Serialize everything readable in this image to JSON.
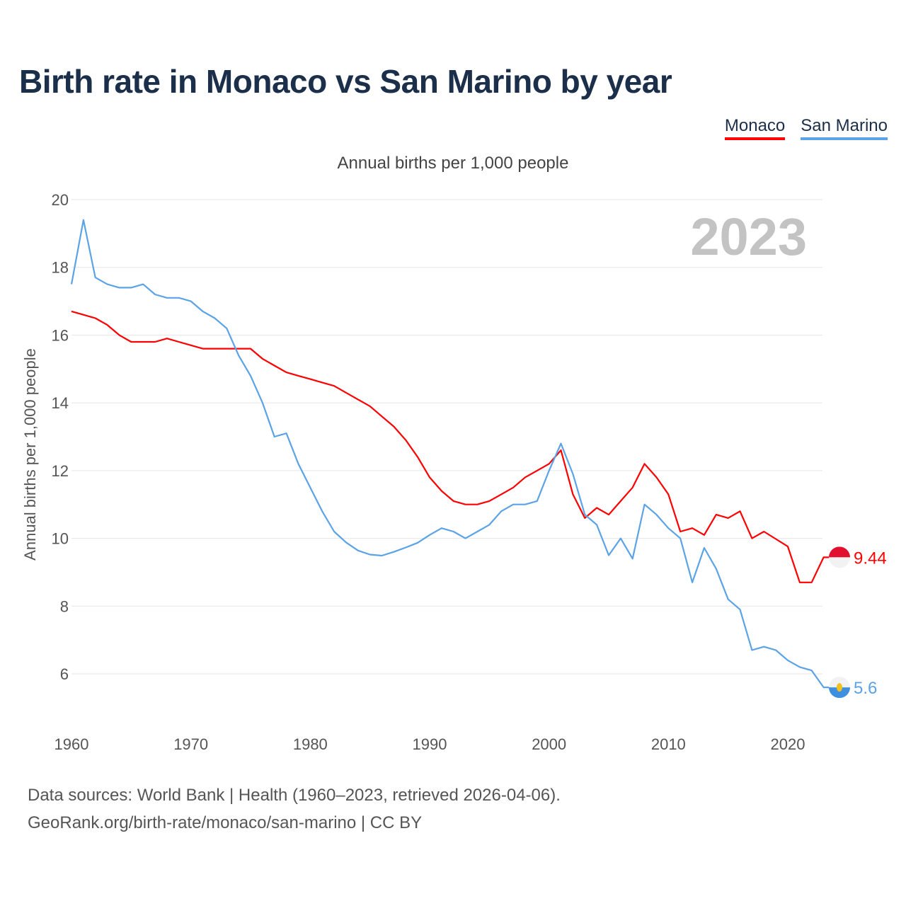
{
  "header": {
    "title": "Birth rate in Monaco vs San Marino by year",
    "subtitle": "Annual births per 1,000 people"
  },
  "legend": {
    "items": [
      {
        "label": "Monaco",
        "color": "#ff0000"
      },
      {
        "label": "San Marino",
        "color": "#5ba3e6"
      }
    ]
  },
  "chart_data": {
    "type": "line",
    "title": "Birth rate in Monaco vs San Marino by year",
    "subtitle": "Annual births per 1,000 people",
    "xlabel": "",
    "ylabel": "Annual births per 1,000 people",
    "xlim": [
      1960,
      2023
    ],
    "ylim": [
      5,
      20
    ],
    "x_ticks": [
      1960,
      1970,
      1980,
      1990,
      2000,
      2010,
      2020
    ],
    "y_ticks": [
      6,
      8,
      10,
      12,
      14,
      16,
      18,
      20
    ],
    "grid": true,
    "year_stamp": "2023",
    "x": [
      1960,
      1961,
      1962,
      1963,
      1964,
      1965,
      1966,
      1967,
      1968,
      1969,
      1970,
      1971,
      1972,
      1973,
      1974,
      1975,
      1976,
      1977,
      1978,
      1979,
      1980,
      1981,
      1982,
      1983,
      1984,
      1985,
      1986,
      1987,
      1988,
      1989,
      1990,
      1991,
      1992,
      1993,
      1994,
      1995,
      1996,
      1997,
      1998,
      1999,
      2000,
      2001,
      2002,
      2003,
      2004,
      2005,
      2006,
      2007,
      2008,
      2009,
      2010,
      2011,
      2012,
      2013,
      2014,
      2015,
      2016,
      2017,
      2018,
      2019,
      2020,
      2021,
      2022,
      2023
    ],
    "series": [
      {
        "name": "Monaco",
        "color": "#ff0000",
        "end_label": "9.44",
        "values": [
          16.7,
          16.6,
          16.5,
          16.3,
          16.0,
          15.8,
          15.8,
          15.8,
          15.9,
          15.8,
          15.7,
          15.6,
          15.6,
          15.6,
          15.6,
          15.6,
          15.3,
          15.1,
          14.9,
          14.8,
          14.7,
          14.6,
          14.5,
          14.3,
          14.1,
          13.9,
          13.6,
          13.3,
          12.9,
          12.4,
          11.8,
          11.4,
          11.1,
          11.0,
          11.0,
          11.1,
          11.3,
          11.5,
          11.8,
          12.0,
          12.2,
          12.6,
          11.3,
          10.6,
          10.9,
          10.7,
          11.1,
          11.5,
          12.2,
          11.8,
          11.3,
          10.2,
          10.3,
          10.1,
          10.7,
          10.6,
          10.8,
          10.0,
          10.2,
          9.98,
          9.76,
          8.7,
          8.7,
          9.44
        ]
      },
      {
        "name": "San Marino",
        "color": "#5ba3e6",
        "end_label": "5.6",
        "values": [
          17.5,
          19.4,
          17.7,
          17.5,
          17.4,
          17.4,
          17.5,
          17.2,
          17.1,
          17.1,
          17.0,
          16.7,
          16.5,
          16.2,
          15.4,
          14.8,
          14.0,
          13.0,
          13.1,
          12.2,
          11.5,
          10.8,
          10.2,
          9.88,
          9.64,
          9.52,
          9.49,
          9.6,
          9.73,
          9.87,
          10.1,
          10.3,
          10.2,
          10.0,
          10.2,
          10.4,
          10.8,
          11.0,
          11.0,
          11.1,
          12.0,
          12.8,
          11.9,
          10.7,
          10.4,
          9.5,
          10.0,
          9.4,
          11.0,
          10.7,
          10.3,
          10.0,
          8.7,
          9.72,
          9.1,
          8.2,
          7.9,
          6.7,
          6.8,
          6.7,
          6.4,
          6.2,
          6.1,
          5.6
        ]
      }
    ]
  },
  "footer": {
    "line1": "Data sources: World Bank | Health (1960–2023, retrieved 2026-04-06).",
    "line2": "GeoRank.org/birth-rate/monaco/san-marino | CC BY"
  }
}
